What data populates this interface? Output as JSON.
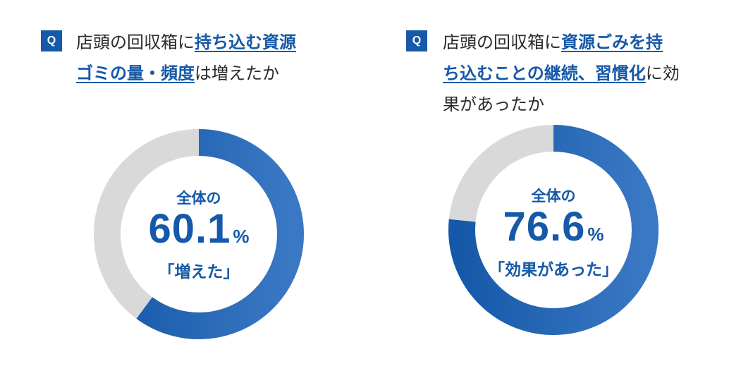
{
  "colors": {
    "accent": "#1559a8",
    "accent_light": "#3a78c4",
    "track": "#d9d9d9"
  },
  "panels": [
    {
      "badge": "Q",
      "question_lines": [
        [
          {
            "text": "店頭の回収箱に"
          },
          {
            "text": "持ち込む資源",
            "hl": true
          }
        ],
        [
          {
            "text": "ゴミの量・頻度",
            "hl": true
          },
          {
            "text": "は増えたか"
          }
        ]
      ],
      "center": {
        "lead": "全体の",
        "value": "60.1",
        "unit": "%",
        "tail": "「増えた」"
      }
    },
    {
      "badge": "Q",
      "question_lines": [
        [
          {
            "text": "店頭の回収箱に"
          },
          {
            "text": "資源ごみを持",
            "hl": true
          }
        ],
        [
          {
            "text": "ち込むことの継続、習慣化",
            "hl": true
          },
          {
            "text": "に効"
          }
        ],
        [
          {
            "text": "果があったか"
          }
        ]
      ],
      "center": {
        "lead": "全体の",
        "value": "76.6",
        "unit": "%",
        "tail": "「効果があった」"
      }
    }
  ],
  "chart_data": [
    {
      "type": "pie",
      "categories": [
        "増えた",
        ""
      ],
      "values": [
        60.1,
        39.9
      ]
    },
    {
      "type": "pie",
      "categories": [
        "効果があった",
        ""
      ],
      "values": [
        76.6,
        23.4
      ]
    }
  ]
}
